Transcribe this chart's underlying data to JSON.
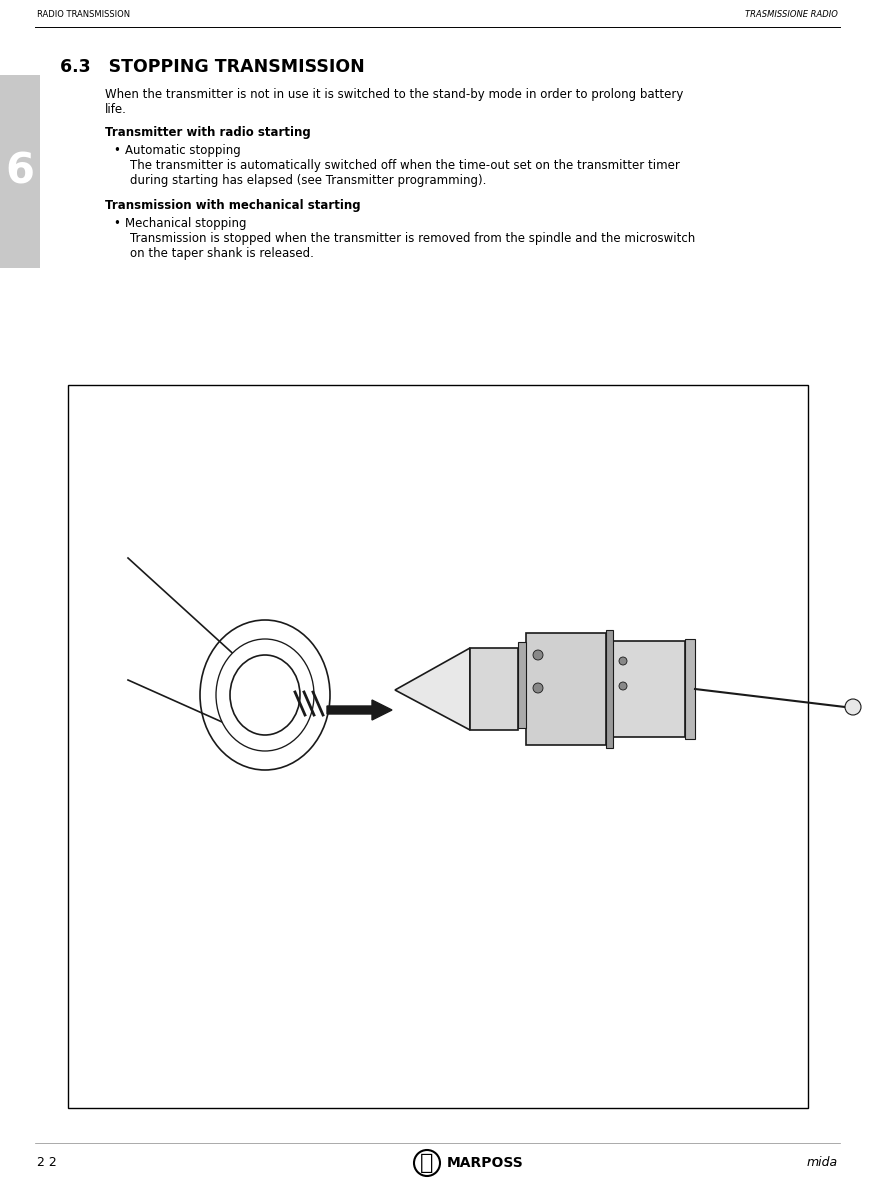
{
  "header_left": "RADIO TRANSMISSION",
  "header_right": "TRASMISSIONE RADIO",
  "section_number": "6.3",
  "section_title": "STOPPING TRANSMISSION",
  "intro_text": "When the transmitter is not in use it is switched to the stand-by mode in order to prolong battery\nlife.",
  "subheading1": "Transmitter with radio starting",
  "bullet1_title": "Automatic stopping",
  "bullet1_body": "The transmitter is automatically switched off when the time-out set on the transmitter timer\nduring starting has elapsed (see Transmitter programming).",
  "subheading2": "Transmission with mechanical starting",
  "bullet2_title": "Mechanical stopping",
  "bullet2_body": "Transmission is stopped when the transmitter is removed from the spindle and the microswitch\non the taper shank is released.",
  "footer_page": "2 2",
  "footer_brand": "MARPOSS",
  "footer_model": "mida",
  "tab_number": "6",
  "tab_bg": "#c8c8c8",
  "background": "#ffffff",
  "header_line_color": "#000000",
  "image_box_color": "#000000",
  "image_area_bg": "#ffffff"
}
